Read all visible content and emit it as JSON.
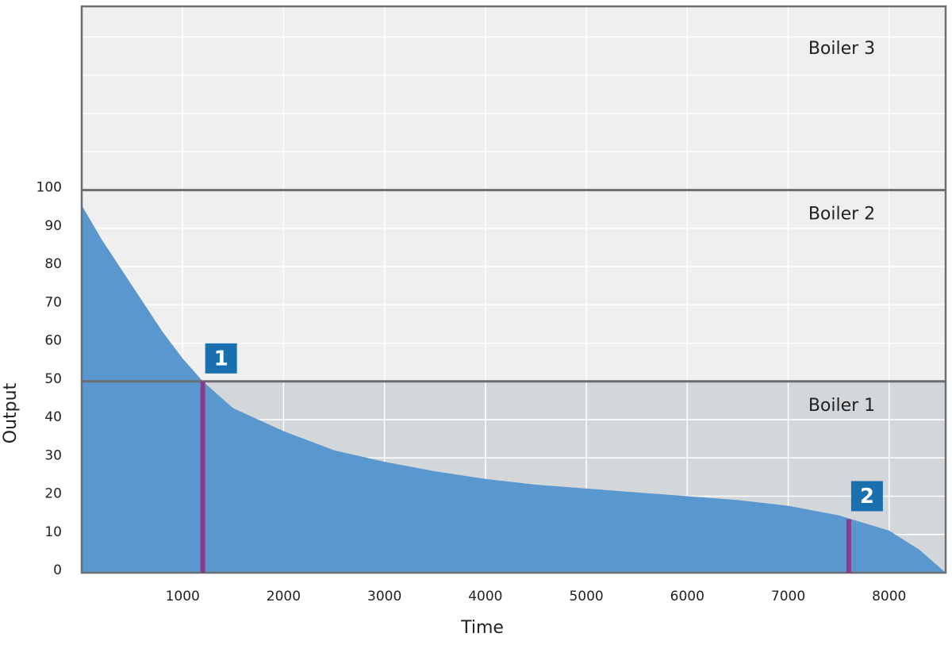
{
  "chart_data": {
    "type": "area",
    "x_label": "Time",
    "y_label": "Output",
    "xlim": [
      0,
      8560
    ],
    "ylim": [
      0,
      148
    ],
    "xticks": [
      1000,
      2000,
      3000,
      4000,
      5000,
      6000,
      7000,
      8000
    ],
    "yticks": [
      0,
      10,
      20,
      30,
      40,
      50,
      60,
      70,
      80,
      90,
      100
    ],
    "y_extra_gridlines": [
      110,
      120,
      130,
      140
    ],
    "grid": true,
    "color": "#5b97cf",
    "x": [
      0,
      200,
      400,
      600,
      800,
      1000,
      1200,
      1500,
      2000,
      2500,
      3000,
      3500,
      4000,
      4500,
      5000,
      5500,
      6000,
      6500,
      7000,
      7500,
      8000,
      8300,
      8560
    ],
    "values": [
      96,
      87,
      79,
      71,
      63,
      56,
      50,
      43,
      37,
      32,
      29,
      26.5,
      24.5,
      23,
      22,
      21,
      20,
      19,
      17.5,
      15,
      11,
      6,
      0
    ],
    "bands": [
      {
        "name": "Boiler 1",
        "from": 0,
        "to": 50,
        "color": "#d3d7da"
      },
      {
        "name": "Boiler 2",
        "from": 50,
        "to": 100,
        "color": "#efefef"
      },
      {
        "name": "Boiler 3",
        "from": 100,
        "to": 148,
        "color": "#efefef"
      }
    ],
    "markers": [
      {
        "label": "1",
        "x": 1200,
        "y": 50,
        "color": "#8a3a8d"
      },
      {
        "label": "2",
        "x": 7600,
        "y": 14,
        "color": "#8a3a8d"
      }
    ]
  }
}
